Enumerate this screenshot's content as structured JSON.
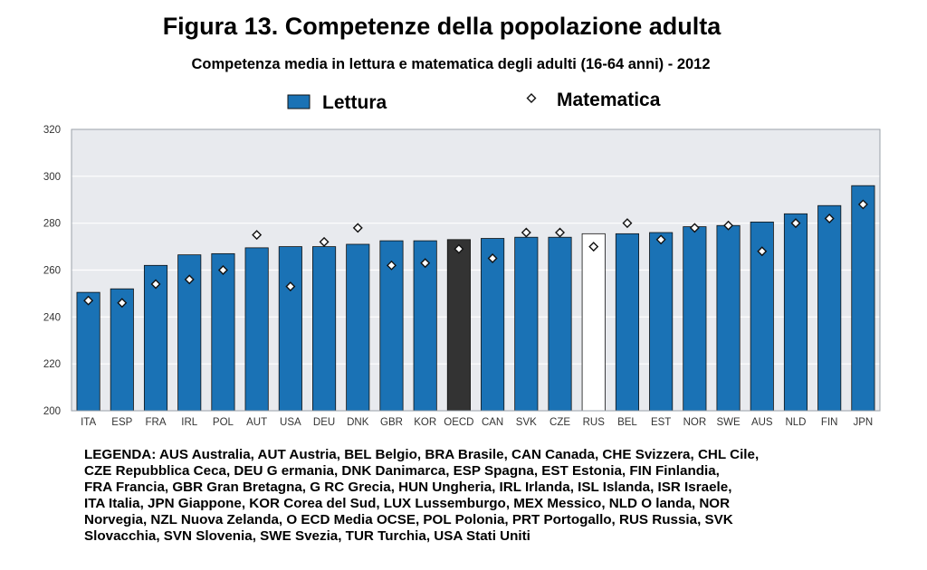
{
  "header": {
    "title": "Figura 13. Competenze della popolazione adulta",
    "subtitle": "Competenza media in lettura e matematica degli adulti (16-64 anni) - 2012"
  },
  "colors": {
    "bar": "#1a72b5",
    "bar_outline": "#111111",
    "highlight_oecd": "#333333",
    "highlight_rus": "#ffffff",
    "plot_background": "#e8eaee",
    "grid": "#ffffff"
  },
  "chart_data": {
    "type": "bar",
    "categories": [
      "ITA",
      "ESP",
      "FRA",
      "IRL",
      "POL",
      "AUT",
      "USA",
      "DEU",
      "DNK",
      "GBR",
      "KOR",
      "OECD",
      "CAN",
      "SVK",
      "CZE",
      "RUS",
      "BEL",
      "EST",
      "NOR",
      "SWE",
      "AUS",
      "NLD",
      "FIN",
      "JPN"
    ],
    "series": [
      {
        "name": "Lettura",
        "type": "bar",
        "values": [
          250.5,
          252,
          262,
          266.5,
          267,
          269.5,
          270,
          270,
          271,
          272.5,
          272.5,
          273,
          273.5,
          274,
          274,
          275.5,
          275.5,
          276,
          278.5,
          279,
          280.5,
          284,
          287.5,
          296
        ]
      },
      {
        "name": "Matematica",
        "type": "scatter",
        "marker": "diamond-open",
        "values": [
          247,
          246,
          254,
          256,
          260,
          275,
          253,
          272,
          278,
          262,
          263,
          269,
          265,
          276,
          276,
          270,
          280,
          273,
          278,
          279,
          268,
          280,
          282,
          288
        ]
      }
    ],
    "highlight": {
      "OECD": "highlight_oecd",
      "RUS": "highlight_rus"
    },
    "ylim": [
      200,
      320
    ],
    "yticks": [
      200,
      220,
      240,
      260,
      280,
      300,
      320
    ],
    "grid": true,
    "legend_position": "top-center"
  },
  "legend_note": {
    "lines": [
      "LEGENDA: AUS Australia, AUT Austria, BEL Belgio, BRA Brasile, CAN Canada, CHE Svizzera, CHL Cile,",
      "CZE Repubblica  Ceca,  DEU  G ermania,  DNK  Danimarca,  ESP  Spagna,  EST  Estonia,  FIN  Finlandia,",
      "FRA Francia,  GBR  Gran Bretagna, G RC  Grecia,  HUN  Ungheria, IRL  Irlanda, ISL  Islanda, ISR  Israele,",
      "ITA  Italia, JPN  Giappone,  KOR  Corea del Sud,  LUX  Lussemburgo,  MEX Messico, NLD O landa,  NOR",
      "Norvegia,  NZL  Nuova Zelanda, O ECD   Media OCSE, POL  Polonia, PRT  Portogallo, RUS  Russia, SVK",
      "Slovacchia, SVN Slovenia, SWE Svezia, TUR Turchia, USA Stati Uniti"
    ]
  }
}
